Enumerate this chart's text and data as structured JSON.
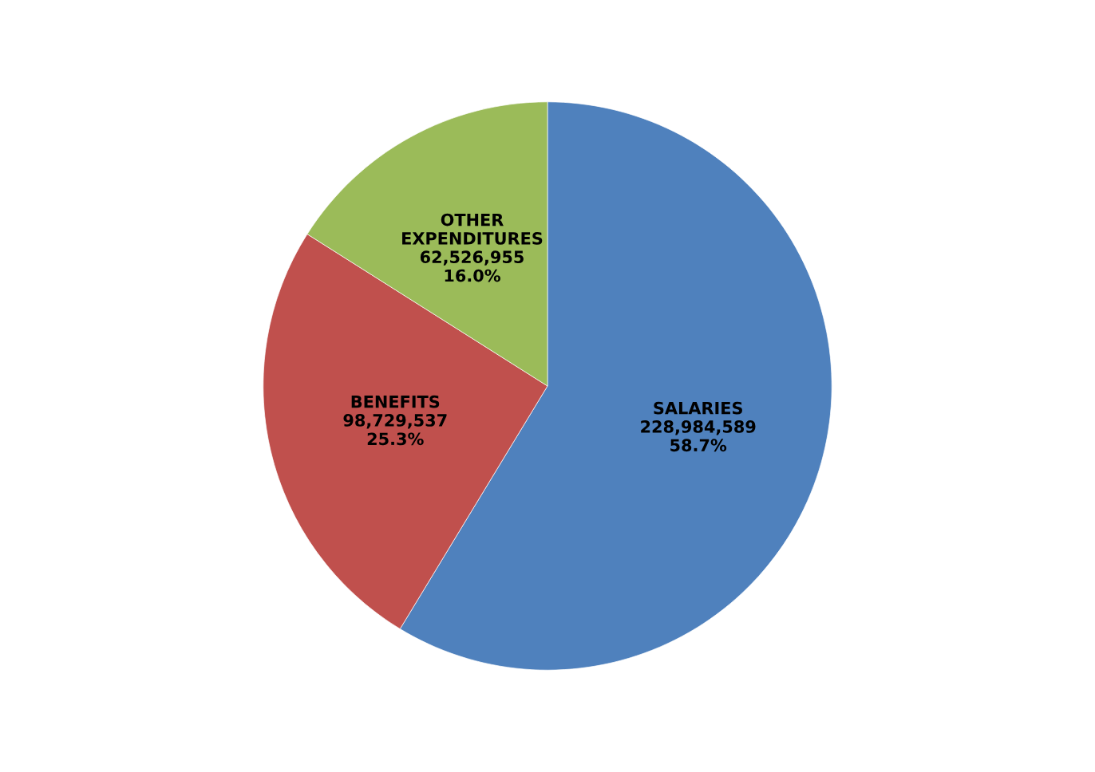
{
  "chart_data": {
    "type": "pie",
    "categories": [
      "SALARIES",
      "BENEFITS",
      "OTHER\nEXPENDITURES"
    ],
    "values": [
      228984589,
      98729537,
      62526955
    ],
    "colors": [
      "#4f81bd",
      "#c0504d",
      "#9bbb59"
    ],
    "value_labels": [
      "228,984,589\n58.7%",
      "98,729,537\n25.3%",
      "62,526,955\n16.0%"
    ],
    "legend": false
  }
}
